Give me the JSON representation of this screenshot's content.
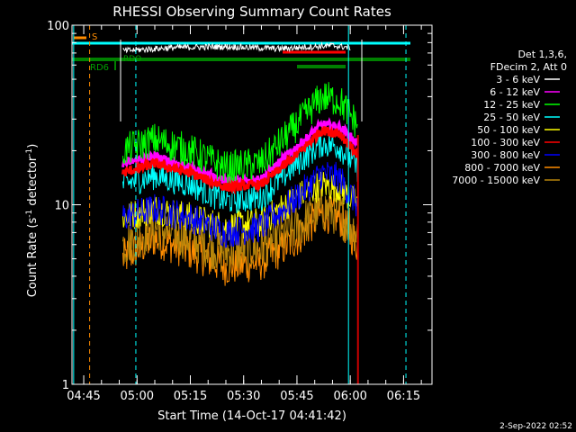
{
  "chart_data": {
    "type": "line",
    "title": "RHESSI Observing Summary Count Rates",
    "xlabel": "Start Time (14-Oct-17 04:41:42)",
    "ylabel_main": "Count Rate (s",
    "ylabel_sup": "-1",
    "ylabel_tail": " detector",
    "ylabel_end": ")",
    "y_scale": "log",
    "ylim": [
      1,
      100
    ],
    "y_ticks": [
      {
        "v": 1,
        "label": "1"
      },
      {
        "v": 10,
        "label": "10"
      },
      {
        "v": 100,
        "label": "100"
      }
    ],
    "xlim": [
      "04:41:42",
      "06:23:00"
    ],
    "x_ticks": [
      "04:45",
      "05:00",
      "05:15",
      "05:30",
      "05:45",
      "06:00",
      "06:15"
    ],
    "footer": "2-Sep-2022 02:52",
    "legend": {
      "header": [
        "Det 1,3,6,",
        "FDecim 2, Att 0"
      ],
      "entries": [
        {
          "label": "3 - 6 keV",
          "color": "#ffffff"
        },
        {
          "label": "6 - 12 keV",
          "color": "#ff00ff"
        },
        {
          "label": "12 - 25 keV",
          "color": "#00ff00"
        },
        {
          "label": "25 - 50 keV",
          "color": "#00ffff"
        },
        {
          "label": "50 - 100 keV",
          "color": "#ffff00"
        },
        {
          "label": "100 - 300 keV",
          "color": "#ff0000"
        },
        {
          "label": "300 - 800 keV",
          "color": "#0000ff"
        },
        {
          "label": "800 - 7000 keV",
          "color": "#ff8c00"
        },
        {
          "label": "7000 - 15000 keV",
          "color": "#b8860b"
        }
      ]
    },
    "annotations": {
      "saa_label": "S",
      "rdo_label": "RDO",
      "rd6_label": "RD6"
    },
    "series": [
      {
        "name": "3 - 6 keV",
        "color": "#ffffff",
        "x": [
          "04:56",
          "05:10",
          "05:25",
          "05:40",
          "05:55",
          "06:00"
        ],
        "values": [
          72,
          75,
          76,
          74,
          77,
          75
        ]
      },
      {
        "name": "6 - 12 keV",
        "color": "#ff00ff",
        "x": [
          "04:56",
          "05:05",
          "05:15",
          "05:25",
          "05:35",
          "05:45",
          "05:52",
          "05:57",
          "06:02"
        ],
        "values": [
          17,
          18.5,
          16,
          13.5,
          14,
          21,
          28,
          27,
          22
        ]
      },
      {
        "name": "12 - 25 keV",
        "color": "#00ff00",
        "x": [
          "04:56",
          "05:05",
          "05:15",
          "05:25",
          "05:35",
          "05:45",
          "05:52",
          "05:57",
          "06:02"
        ],
        "values": [
          20,
          23,
          20,
          16,
          17,
          28,
          40,
          38,
          28
        ]
      },
      {
        "name": "25 - 50 keV",
        "color": "#00ffff",
        "x": [
          "04:56",
          "05:05",
          "05:15",
          "05:25",
          "05:35",
          "05:45",
          "05:52",
          "05:57",
          "06:02"
        ],
        "values": [
          13,
          14.5,
          13,
          10.5,
          11,
          17,
          22,
          21,
          16
        ]
      },
      {
        "name": "50 - 100 keV",
        "color": "#ffff00",
        "x": [
          "04:56",
          "05:05",
          "05:15",
          "05:25",
          "05:35",
          "05:45",
          "05:52",
          "05:57",
          "06:02"
        ],
        "values": [
          8.5,
          9.5,
          8.5,
          7.5,
          8,
          11,
          13,
          12.5,
          10
        ]
      },
      {
        "name": "100 - 300 keV",
        "color": "#ff0000",
        "x": [
          "04:56",
          "05:05",
          "05:15",
          "05:25",
          "05:35",
          "05:45",
          "05:52",
          "05:57",
          "06:02"
        ],
        "values": [
          15,
          17,
          15,
          12.5,
          13,
          19,
          26,
          25,
          19
        ]
      },
      {
        "name": "300 - 800 keV",
        "color": "#0000ff",
        "x": [
          "04:56",
          "05:05",
          "05:15",
          "05:25",
          "05:35",
          "05:45",
          "05:52",
          "05:57",
          "06:02"
        ],
        "values": [
          8.5,
          9.5,
          8.5,
          7,
          7.5,
          11,
          15,
          14,
          10
        ]
      },
      {
        "name": "800 - 7000 keV",
        "color": "#ff8c00",
        "x": [
          "04:56",
          "05:05",
          "05:15",
          "05:25",
          "05:35",
          "05:45",
          "05:52",
          "05:57",
          "06:02"
        ],
        "values": [
          5,
          6.5,
          5.5,
          4.5,
          4.8,
          6.5,
          9,
          8.5,
          6
        ]
      },
      {
        "name": "7000 - 15000 keV",
        "color": "#b8860b",
        "x": [
          "04:56",
          "05:05",
          "05:15",
          "05:25",
          "05:35",
          "05:45",
          "05:52",
          "05:57",
          "06:02"
        ],
        "values": [
          6,
          7.5,
          6.5,
          5.5,
          5.8,
          7.5,
          9.5,
          9,
          7
        ]
      }
    ]
  }
}
